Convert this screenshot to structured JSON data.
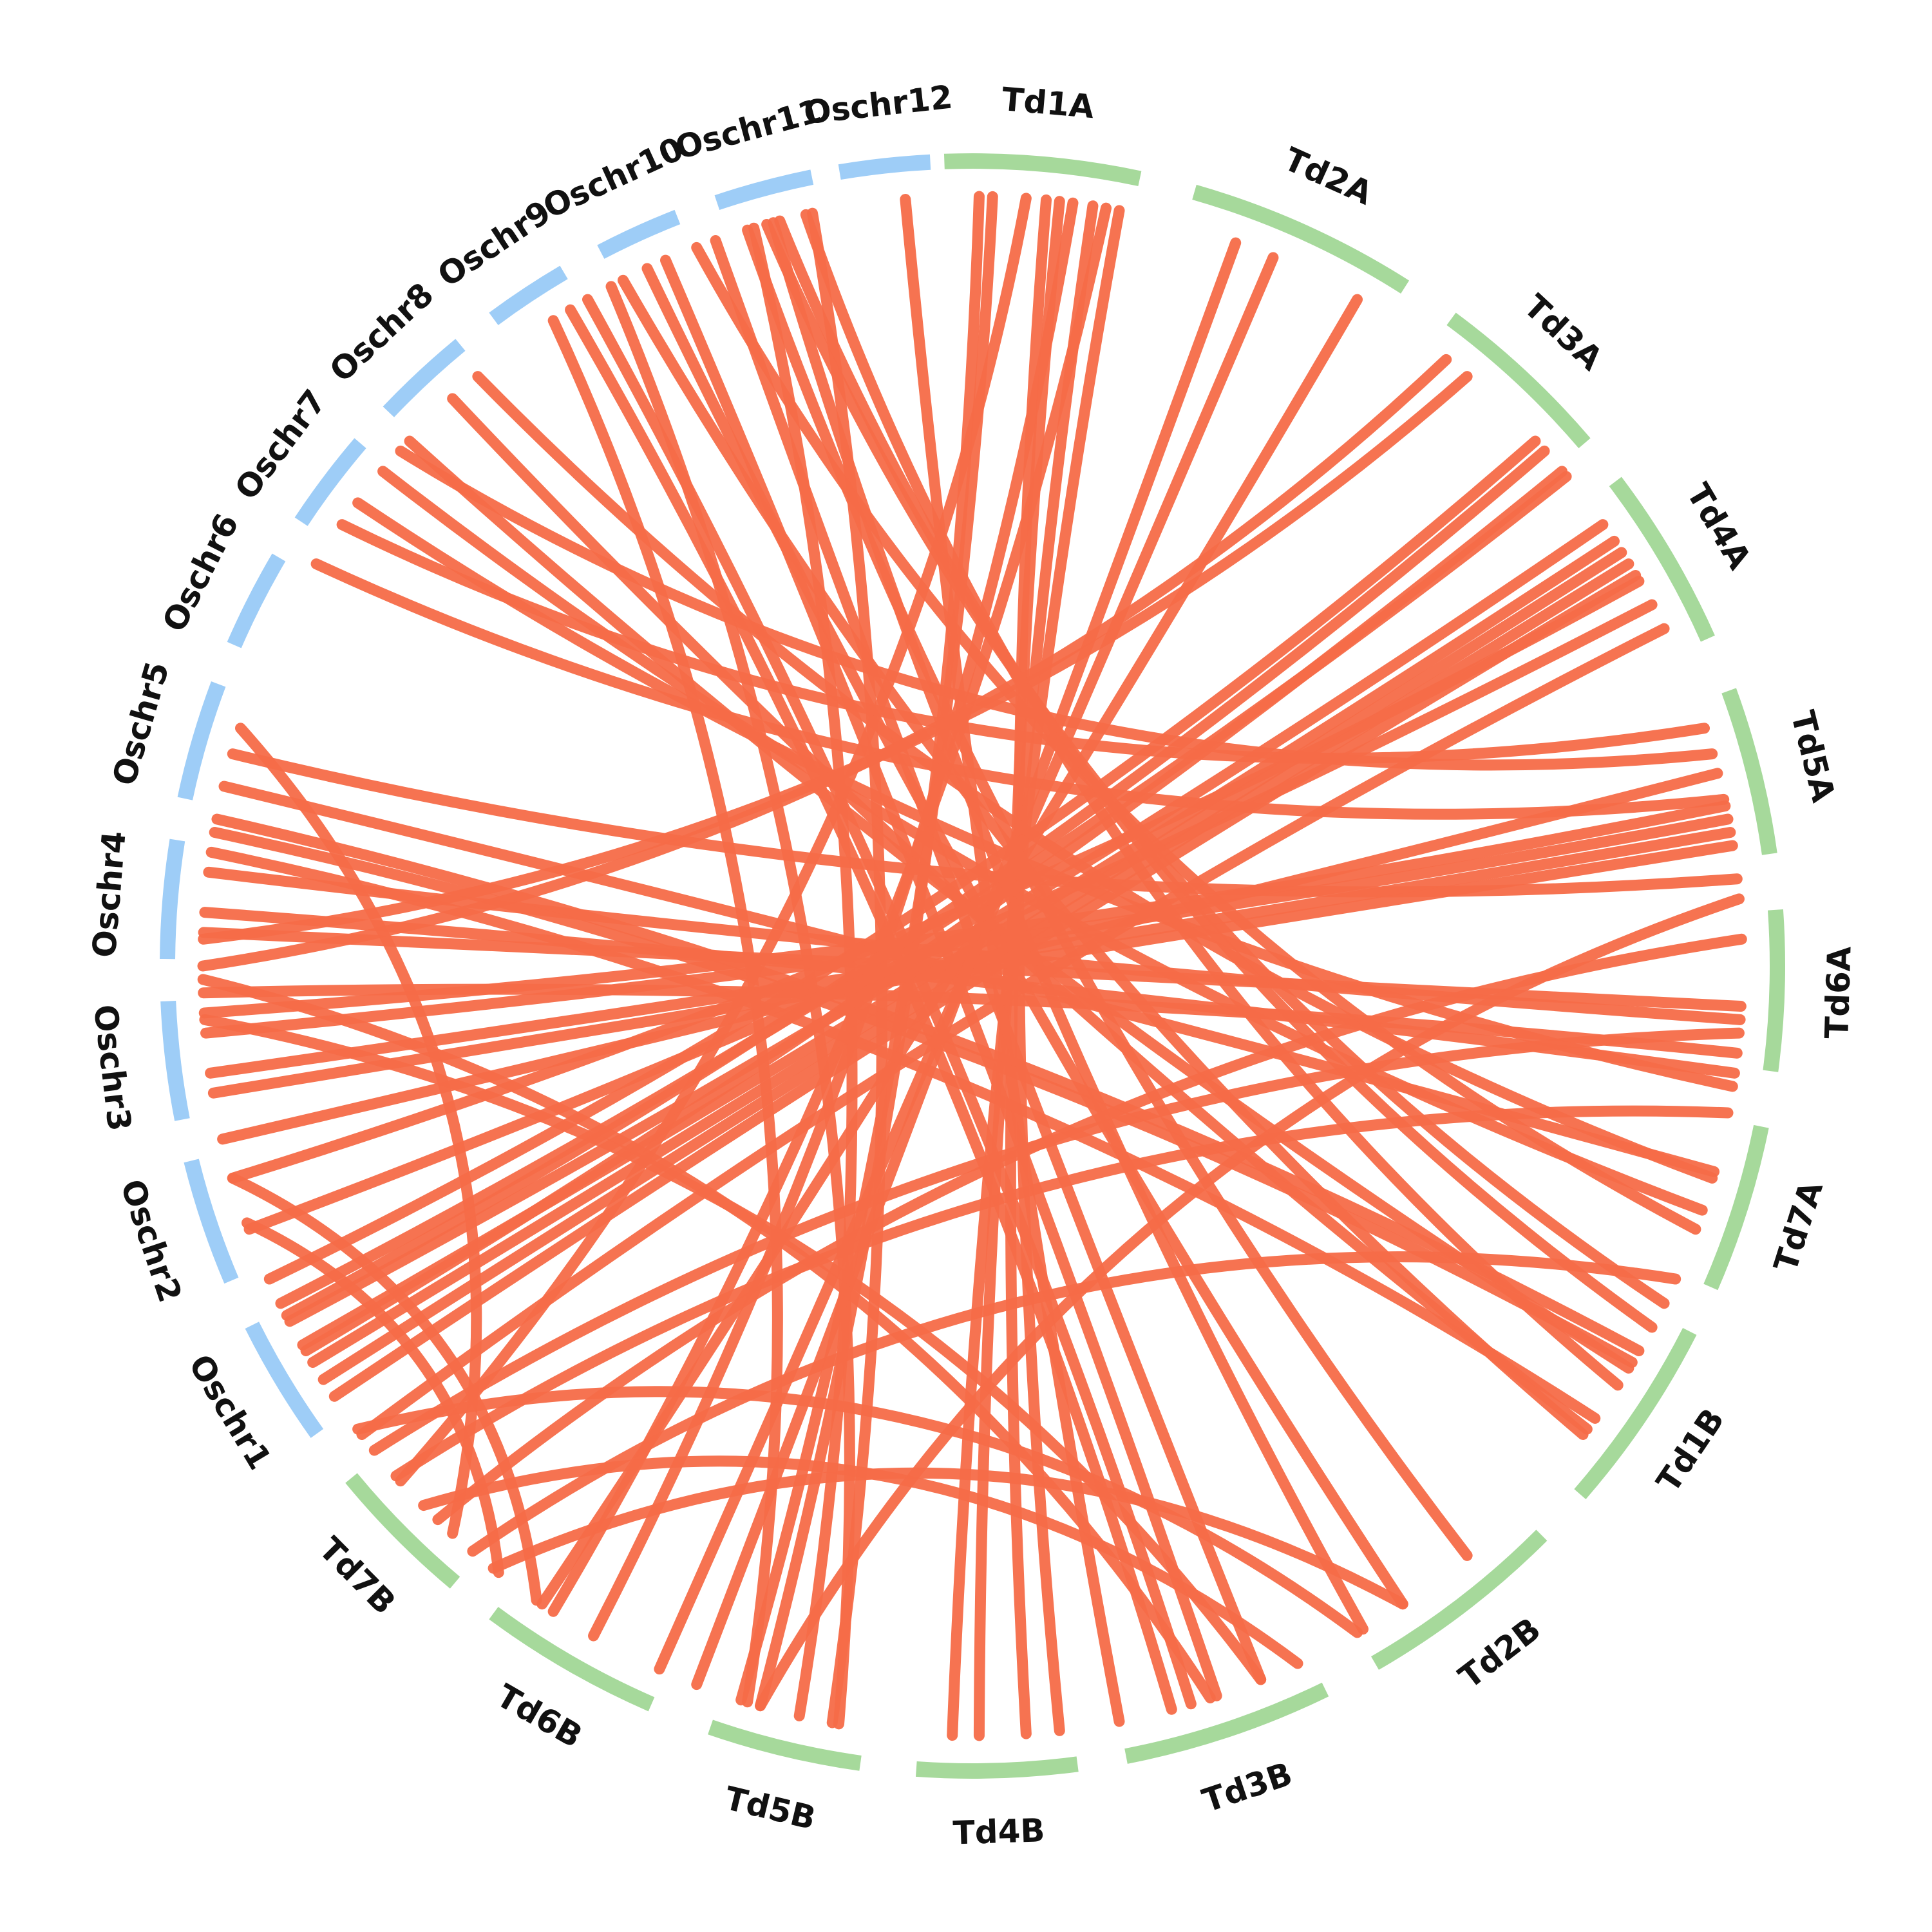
{
  "chart_data": {
    "type": "chord",
    "title": "",
    "colors": {
      "wheat": "#a6d99b",
      "rice": "#9ecdf7",
      "link": "#f56b48"
    },
    "segments": [
      {
        "label": "Td1A",
        "genome": "wheat",
        "start": 358.0,
        "end": 12.0
      },
      {
        "label": "Td2A",
        "genome": "wheat",
        "start": 16.0,
        "end": 32.5
      },
      {
        "label": "Td3A",
        "genome": "wheat",
        "start": 36.5,
        "end": 49.5
      },
      {
        "label": "Td4A",
        "genome": "wheat",
        "start": 53.0,
        "end": 66.0
      },
      {
        "label": "Td5A",
        "genome": "wheat",
        "start": 70.0,
        "end": 82.0
      },
      {
        "label": "Td6A",
        "genome": "wheat",
        "start": 86.0,
        "end": 97.5
      },
      {
        "label": "Td7A",
        "genome": "wheat",
        "start": 101.5,
        "end": 113.5
      },
      {
        "label": "Td1B",
        "genome": "wheat",
        "start": 117.0,
        "end": 131.0
      },
      {
        "label": "Td2B",
        "genome": "wheat",
        "start": 135.0,
        "end": 150.0
      },
      {
        "label": "Td3B",
        "genome": "wheat",
        "start": 154.0,
        "end": 169.0
      },
      {
        "label": "Td4B",
        "genome": "wheat",
        "start": 172.5,
        "end": 184.0
      },
      {
        "label": "Td5B",
        "genome": "wheat",
        "start": 188.0,
        "end": 199.0
      },
      {
        "label": "Td6B",
        "genome": "wheat",
        "start": 203.5,
        "end": 216.5
      },
      {
        "label": "Td7B",
        "genome": "wheat",
        "start": 220.0,
        "end": 230.5
      },
      {
        "label": "Oschr1",
        "genome": "rice",
        "start": 234.5,
        "end": 243.5
      },
      {
        "label": "Oschr2",
        "genome": "rice",
        "start": 247.0,
        "end": 256.0
      },
      {
        "label": "Oschr3",
        "genome": "rice",
        "start": 259.0,
        "end": 267.5
      },
      {
        "label": "Oschr4",
        "genome": "rice",
        "start": 270.5,
        "end": 279.0
      },
      {
        "label": "Oschr5",
        "genome": "rice",
        "start": 282.0,
        "end": 290.5
      },
      {
        "label": "Oschr6",
        "genome": "rice",
        "start": 293.5,
        "end": 300.5
      },
      {
        "label": "Oschr7",
        "genome": "rice",
        "start": 303.5,
        "end": 310.5
      },
      {
        "label": "Oschr8",
        "genome": "rice",
        "start": 313.5,
        "end": 320.5
      },
      {
        "label": "Oschr9",
        "genome": "rice",
        "start": 323.5,
        "end": 329.5
      },
      {
        "label": "Oschr10",
        "genome": "rice",
        "start": 332.5,
        "end": 338.5
      },
      {
        "label": "Oschr11",
        "genome": "rice",
        "start": 341.5,
        "end": 348.5
      },
      {
        "label": "Oschr12",
        "genome": "rice",
        "start": 350.5,
        "end": 357.0
      }
    ],
    "links": [
      [
        0.5,
        196.0
      ],
      [
        1.5,
        197.5
      ],
      [
        5.5,
        173.5
      ],
      [
        6.5,
        176.0
      ],
      [
        4.0,
        228.0
      ],
      [
        7.5,
        209.5
      ],
      [
        9.0,
        179.5
      ],
      [
        10.0,
        213.0
      ],
      [
        11.0,
        181.5
      ],
      [
        355.0,
        169.0
      ],
      [
        348.0,
        190.5
      ],
      [
        343.5,
        193.0
      ],
      [
        336.5,
        161.5
      ],
      [
        330.0,
        163.5
      ],
      [
        340.5,
        158.0
      ],
      [
        345.0,
        149.5
      ],
      [
        335.0,
        146.0
      ],
      [
        333.0,
        127.5
      ],
      [
        328.5,
        165.0
      ],
      [
        332.0,
        190.0
      ],
      [
        327.0,
        197.0
      ],
      [
        317.5,
        127.0
      ],
      [
        313.0,
        121.5
      ],
      [
        307.0,
        99.0
      ],
      [
        310.0,
        108.5
      ],
      [
        301.5,
        77.5
      ],
      [
        288.0,
        222.5
      ],
      [
        286.0,
        83.5
      ],
      [
        283.5,
        105.5
      ],
      [
        281.0,
        120.0
      ],
      [
        280.0,
        121.0
      ],
      [
        277.0,
        94.0
      ],
      [
        274.0,
        98.0
      ],
      [
        272.5,
        93.0
      ],
      [
        268.0,
        96.5
      ],
      [
        266.5,
        78.0
      ],
      [
        265.0,
        79.0
      ],
      [
        262.0,
        80.0
      ],
      [
        260.5,
        81.0
      ],
      [
        257.0,
        75.5
      ],
      [
        254.0,
        214.5
      ],
      [
        250.5,
        218.0
      ],
      [
        244.0,
        50.5
      ],
      [
        242.5,
        55.0
      ],
      [
        240.5,
        56.5
      ],
      [
        239.0,
        57.5
      ],
      [
        237.5,
        58.5
      ],
      [
        236.0,
        59.5
      ],
      [
        20.0,
        201.0
      ],
      [
        23.0,
        204.0
      ],
      [
        30.0,
        214.0
      ],
      [
        38.0,
        270.0
      ],
      [
        40.0,
        272.0
      ],
      [
        47.0,
        246.0
      ],
      [
        48.0,
        243.0
      ],
      [
        50.0,
        240.0
      ],
      [
        60.0,
        254.0
      ],
      [
        62.0,
        250.0
      ],
      [
        64.0,
        232.5
      ],
      [
        72.0,
        305.0
      ],
      [
        74.0,
        312.0
      ],
      [
        85.0,
        196.0
      ],
      [
        88.0,
        224.0
      ],
      [
        95.0,
        231.0
      ],
      [
        101.0,
        228.5
      ],
      [
        106.0,
        320.0
      ],
      [
        110.0,
        339.0
      ],
      [
        114.0,
        220.5
      ],
      [
        116.0,
        344.5
      ],
      [
        118.0,
        345.5
      ],
      [
        123.0,
        347.5
      ],
      [
        126.0,
        278.5
      ],
      [
        140.0,
        343.0
      ],
      [
        146.0,
        218.5
      ],
      [
        150.0,
        233.0
      ],
      [
        155.0,
        225.5
      ],
      [
        158.0,
        266.0
      ],
      [
        162.0,
        269.0
      ]
    ]
  }
}
